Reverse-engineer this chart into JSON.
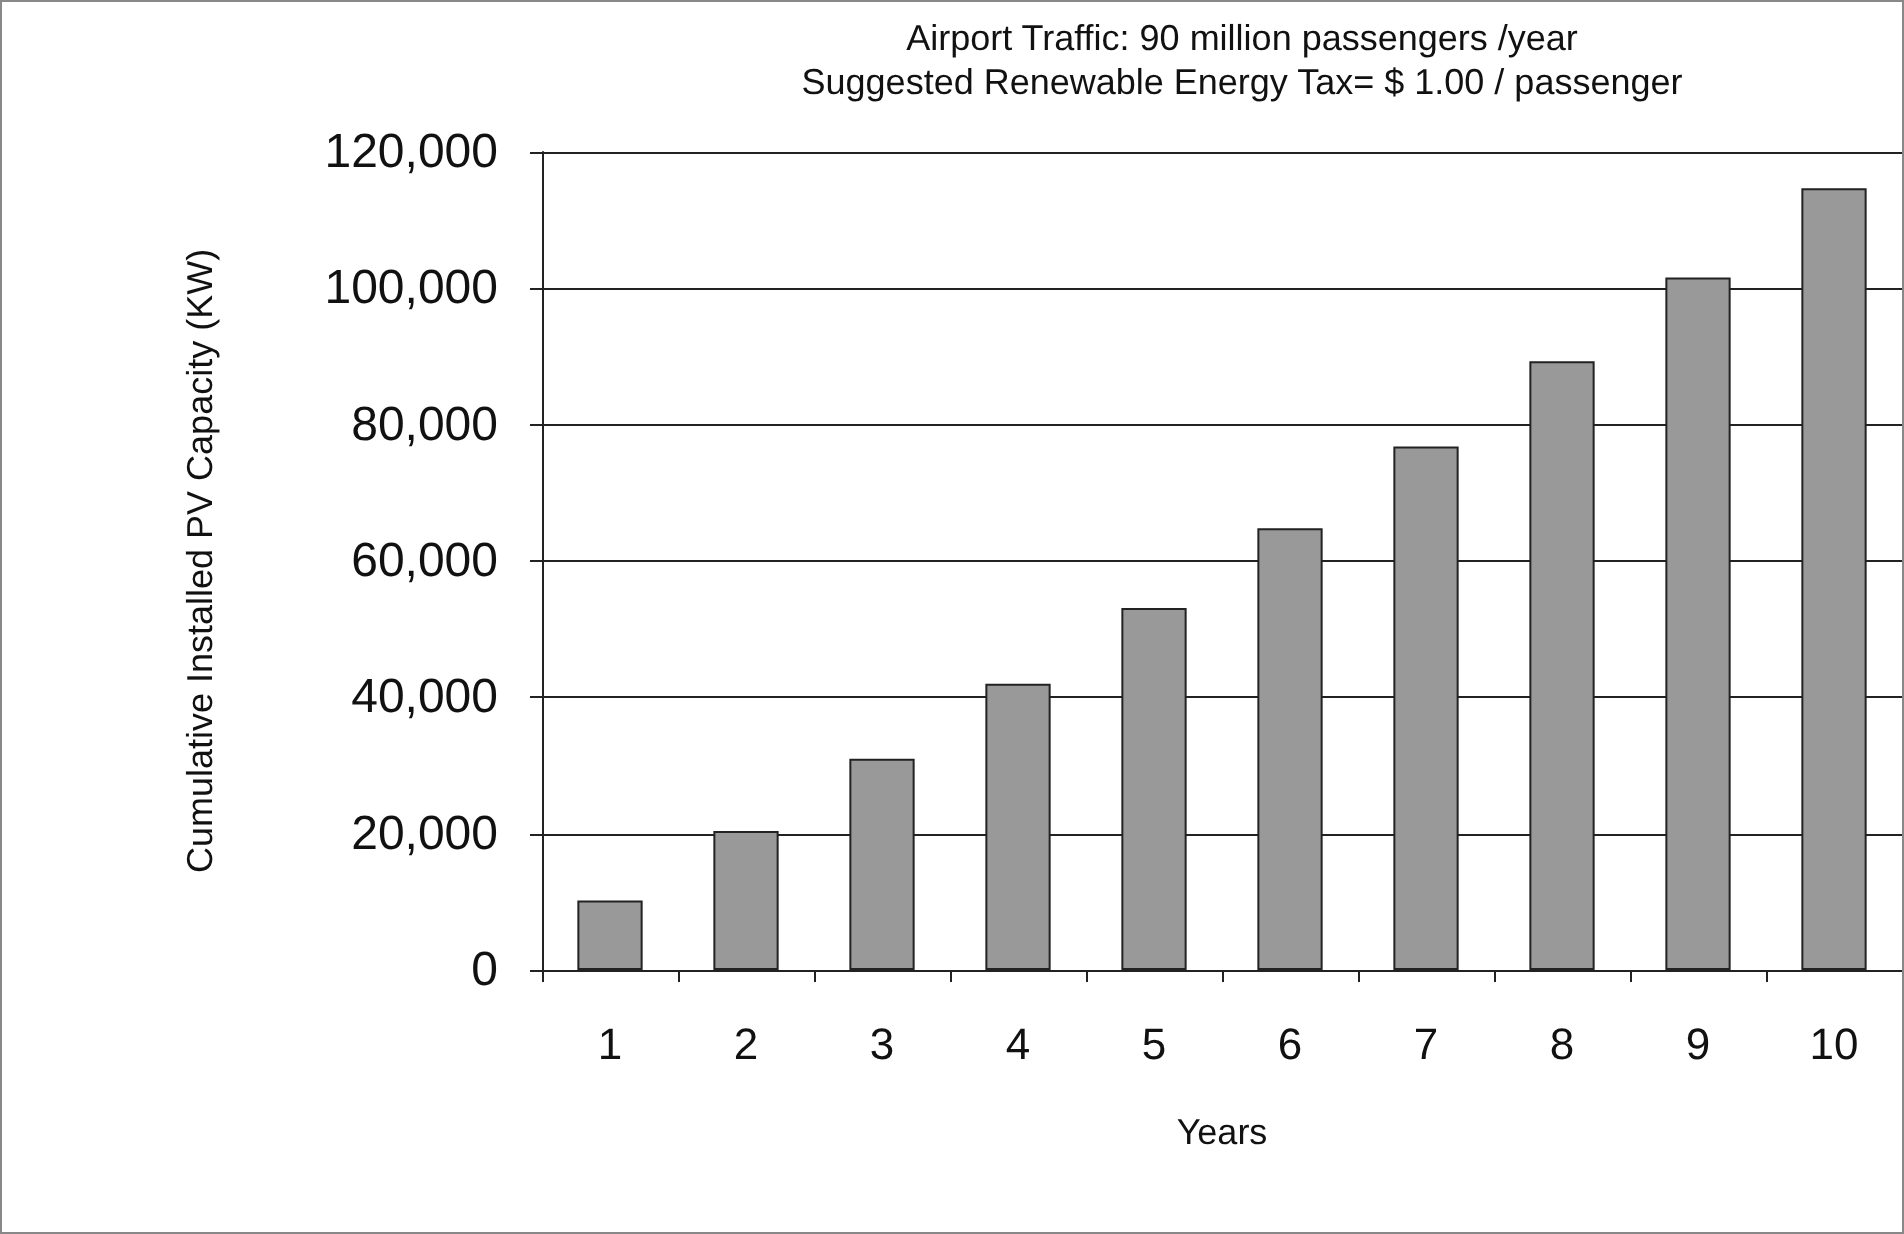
{
  "chart_data": {
    "type": "bar",
    "title": "Airport Traffic: 90 million passengers /year",
    "subtitle": "Suggested Renewable Energy Tax= $ 1.00 / passenger",
    "xlabel": "Years",
    "ylabel": "Cumulative Installed PV Capacity (KW)",
    "categories": [
      "1",
      "2",
      "3",
      "4",
      "5",
      "6",
      "7",
      "8",
      "9",
      "10"
    ],
    "values": [
      10200,
      20400,
      31000,
      42000,
      53100,
      64800,
      76800,
      89300,
      101600,
      114700
    ],
    "color": "#999999",
    "ylim": [
      0,
      120000
    ],
    "yticks": [
      0,
      {
        "value": 20000,
        "label": "20,000"
      },
      {
        "value": 40000,
        "label": "40,000"
      },
      {
        "value": 60000,
        "label": "60,000"
      },
      {
        "value": 80000,
        "label": "80,000"
      },
      {
        "value": 100000,
        "label": "100,000"
      },
      {
        "value": 120000,
        "label": "120,000"
      }
    ],
    "grid": "y"
  }
}
